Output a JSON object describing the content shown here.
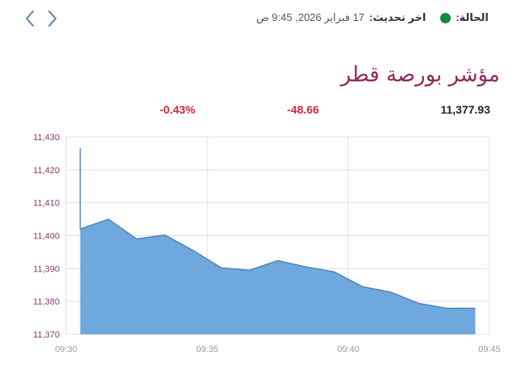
{
  "nav": {
    "prev_icon": "chevron-left-icon",
    "next_icon": "chevron-right-icon"
  },
  "status": {
    "label": "الحالة:",
    "indicator_color": "#148a3c",
    "update_label": "اخر تحديث:",
    "update_value": "17 فبراير 2026, 9:45 ص"
  },
  "title": "مؤشر بورصة قطر",
  "stats": {
    "price": "11,377.93",
    "change": "-48.66",
    "change_pct": "-0.43%",
    "price_color": "#222222",
    "negative_color": "#d3263a"
  },
  "chart_data": {
    "type": "area",
    "title": "مؤشر بورصة قطر",
    "xlabel": "",
    "ylabel": "",
    "x_ticks": [
      "09:30",
      "09:35",
      "09:40",
      "09:45"
    ],
    "y_ticks": [
      "11,430",
      "11,420",
      "11,410",
      "11,400",
      "11,390",
      "11,380",
      "11,370"
    ],
    "ylim": [
      11370,
      11430
    ],
    "xlim": [
      "09:30",
      "09:45"
    ],
    "grid": true,
    "fill_color": "#6fa8dc",
    "line_color": "#4f7fb8",
    "series": [
      {
        "name": "مؤشر بورصة قطر",
        "x": [
          "09:30.5",
          "09:30.5",
          "09:31.5",
          "09:32.5",
          "09:33.5",
          "09:34.5",
          "09:35.5",
          "09:36.5",
          "09:37.5",
          "09:38.5",
          "09:39.5",
          "09:40.5",
          "09:41.5",
          "09:42.5",
          "09:43.5",
          "09:44.5"
        ],
        "values": [
          11426.6,
          11402.0,
          11405.0,
          11399.0,
          11400.2,
          11395.5,
          11390.2,
          11389.5,
          11392.4,
          11390.5,
          11389.0,
          11384.5,
          11382.8,
          11379.4,
          11377.9,
          11377.93
        ]
      }
    ]
  }
}
